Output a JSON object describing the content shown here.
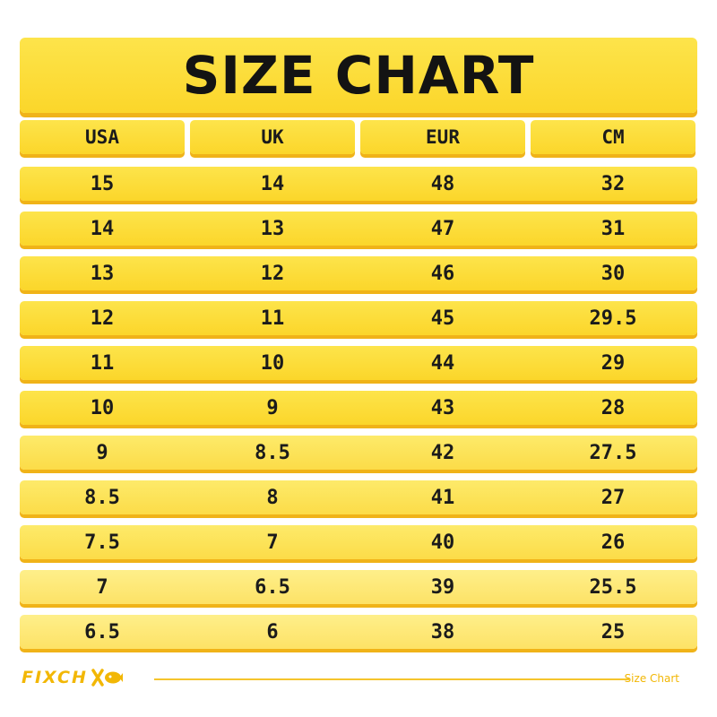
{
  "title": "SIZE CHART",
  "headers": [
    "USA",
    "UK",
    "EUR",
    "CM"
  ],
  "rows": [
    [
      "15",
      "14",
      "48",
      "32"
    ],
    [
      "14",
      "13",
      "47",
      "31"
    ],
    [
      "13",
      "12",
      "46",
      "30"
    ],
    [
      "12",
      "11",
      "45",
      "29.5"
    ],
    [
      "11",
      "10",
      "44",
      "29"
    ],
    [
      "10",
      "9",
      "43",
      "28"
    ],
    [
      "9",
      "8.5",
      "42",
      "27.5"
    ],
    [
      "8.5",
      "8",
      "41",
      "27"
    ],
    [
      "7.5",
      "7",
      "40",
      "26"
    ],
    [
      "7",
      "6.5",
      "39",
      "25.5"
    ],
    [
      "6.5",
      "6",
      "38",
      "25"
    ]
  ],
  "footer": {
    "brand": "FIXCH",
    "brand_logo_icon": "xo-fish-logo-icon",
    "caption": "Size Chart"
  },
  "colors": {
    "row_yellow": "#fbd62a",
    "row_shadow": "#f0b318",
    "brand_yellow": "#f2b705",
    "text": "#1b1b1b"
  }
}
